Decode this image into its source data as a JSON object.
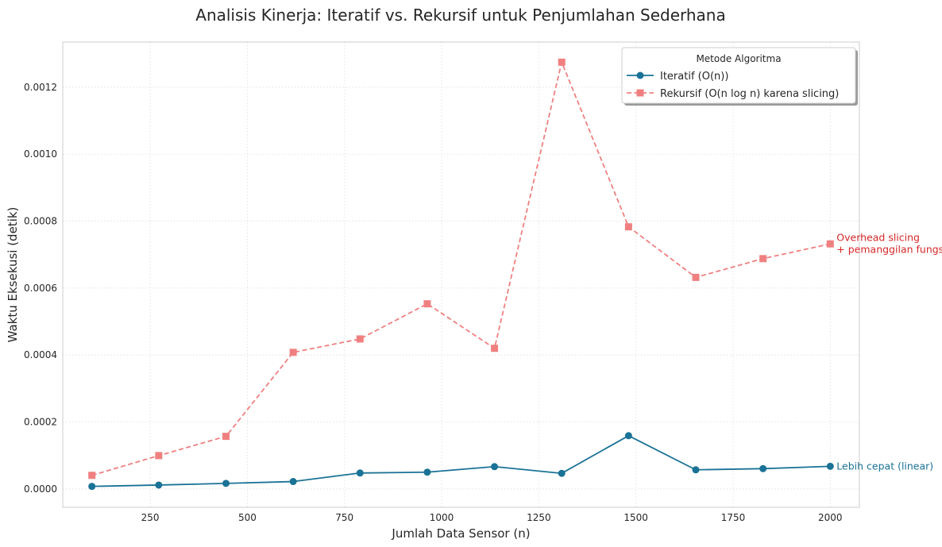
{
  "colors": {
    "iteratif": "#1a7296",
    "rekursif": "#f08080",
    "annot_iteratif": "#1a7296",
    "annot_rekursif": "#d62728",
    "frame": "#cccccc"
  },
  "chart_data": {
    "type": "line",
    "title": "Analisis Kinerja: Iteratif vs. Rekursif untuk Penjumlahan Sederhana",
    "xlabel": "Jumlah Data Sensor (n)",
    "ylabel": "Waktu Eksekusi (detik)",
    "xlim": [
      25,
      2075
    ],
    "ylim": [
      -5.5e-05,
      0.001335
    ],
    "xticks": [
      250,
      500,
      750,
      1000,
      1250,
      1500,
      1750,
      2000
    ],
    "xtick_labels": [
      "250",
      "500",
      "750",
      "1000",
      "1250",
      "1500",
      "1750",
      "2000"
    ],
    "yticks": [
      0.0,
      0.0002,
      0.0004,
      0.0006,
      0.0008,
      0.001,
      0.0012
    ],
    "ytick_labels": [
      "0.0000",
      "0.0002",
      "0.0004",
      "0.0006",
      "0.0008",
      "0.0010",
      "0.0012"
    ],
    "grid": true,
    "legend_title": "Metode Algoritma",
    "legend_position": "top-right",
    "x": [
      100,
      272,
      445,
      618,
      790,
      963,
      1136,
      1309,
      1481,
      1654,
      1827,
      2000
    ],
    "series": [
      {
        "name": "Iteratif (O(n))",
        "key": "iteratif",
        "style": "solid",
        "marker": "circle",
        "values": [
          7.5e-06,
          1.15e-05,
          1.65e-05,
          2.2e-05,
          4.75e-05,
          5e-05,
          6.65e-05,
          4.65e-05,
          0.000159,
          5.7e-05,
          6.05e-05,
          6.75e-05
        ]
      },
      {
        "name": "Rekursif (O(n log n) karena slicing)",
        "key": "rekursif",
        "style": "dashed",
        "marker": "square",
        "values": [
          4.05e-05,
          9.95e-05,
          0.000157,
          0.000408,
          0.000448,
          0.000553,
          0.00042,
          0.001275,
          0.000783,
          0.000632,
          0.000688,
          0.000732
        ]
      }
    ],
    "annotations": [
      {
        "series": "rekursif",
        "lines": [
          "Overhead slicing",
          "+ pemanggilan fungsi"
        ]
      },
      {
        "series": "iteratif",
        "lines": [
          "Lebih cepat (linear)"
        ]
      }
    ]
  }
}
